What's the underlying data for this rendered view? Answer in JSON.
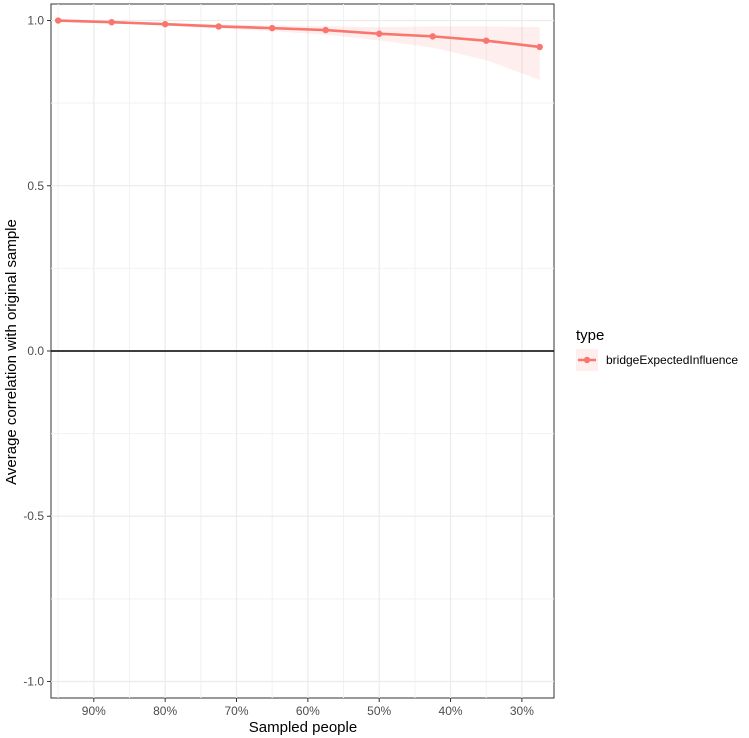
{
  "chart_data": {
    "type": "line",
    "xlabel": "Sampled people",
    "ylabel": "Average correlation with original sample",
    "x_tick_labels": [
      "90%",
      "80%",
      "70%",
      "60%",
      "50%",
      "40%",
      "30%"
    ],
    "x_ticks": [
      0.9,
      0.8,
      0.7,
      0.6,
      0.5,
      0.4,
      0.3
    ],
    "x_reversed": true,
    "xlim": [
      0.255,
      0.96
    ],
    "y_tick_labels": [
      "-1.0",
      "-0.5",
      "0.0",
      "0.5",
      "1.0"
    ],
    "y_ticks": [
      -1.0,
      -0.5,
      0.0,
      0.5,
      1.0
    ],
    "ylim": [
      -1.05,
      1.05
    ],
    "grid": true,
    "hline": 0.0,
    "legend": {
      "title": "type",
      "position": "right"
    },
    "series": [
      {
        "name": "bridgeExpectedInfluence",
        "color": "#f8766d",
        "x": [
          0.95,
          0.875,
          0.8,
          0.725,
          0.65,
          0.575,
          0.5,
          0.425,
          0.35,
          0.275
        ],
        "y": [
          1.0,
          0.995,
          0.989,
          0.982,
          0.977,
          0.971,
          0.96,
          0.952,
          0.939,
          0.92
        ],
        "band_lower": [
          1.0,
          0.992,
          0.985,
          0.976,
          0.968,
          0.957,
          0.94,
          0.918,
          0.88,
          0.82
        ],
        "band_upper": [
          1.0,
          0.998,
          0.993,
          0.988,
          0.985,
          0.983,
          0.98,
          0.982,
          0.982,
          0.98
        ]
      }
    ]
  }
}
